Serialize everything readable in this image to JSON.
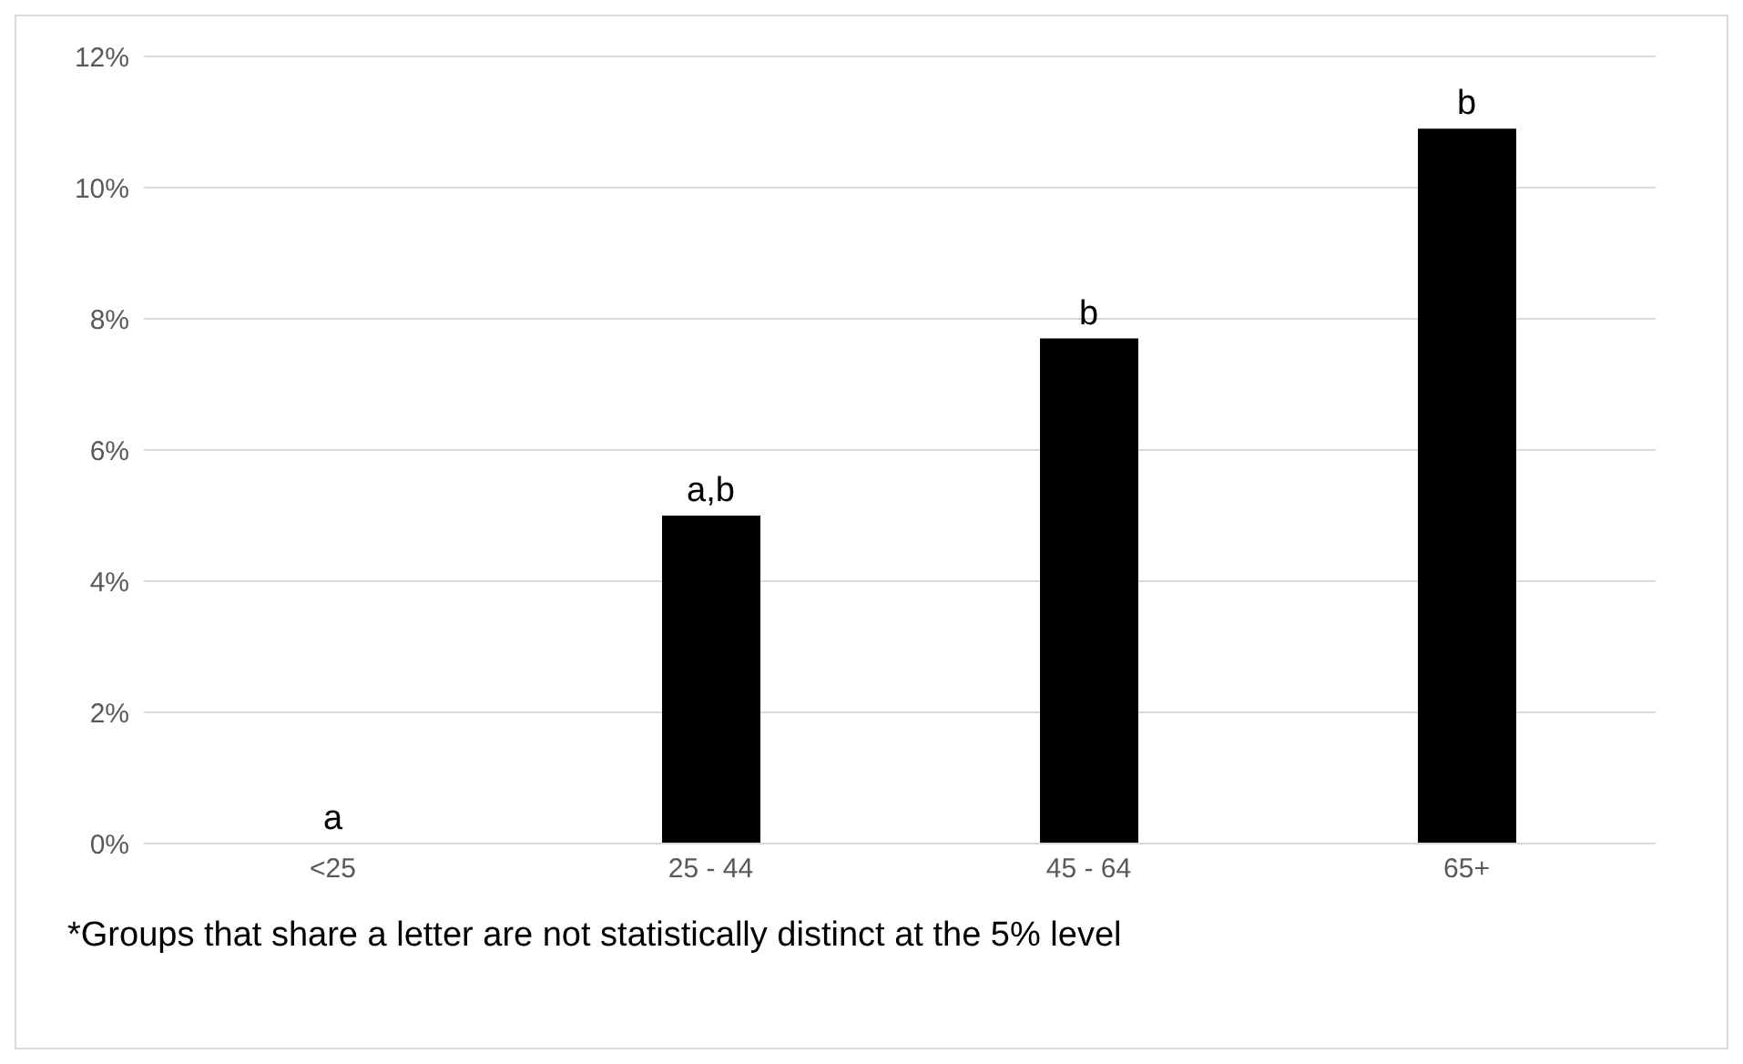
{
  "chart_data": {
    "type": "bar",
    "categories": [
      "<25",
      "25 - 44",
      "45 - 64",
      "65+"
    ],
    "values": [
      0,
      5.0,
      7.7,
      10.9
    ],
    "color": "#000000",
    "ylim": [
      0,
      12
    ],
    "yticks": [
      {
        "value": 0,
        "label": "0%"
      },
      {
        "value": 2,
        "label": "2%"
      },
      {
        "value": 4,
        "label": "4%"
      },
      {
        "value": 6,
        "label": "6%"
      },
      {
        "value": 8,
        "label": "8%"
      },
      {
        "value": 10,
        "label": "10%"
      },
      {
        "value": 12,
        "label": "12%"
      }
    ],
    "grid": "y",
    "annotations": [
      {
        "text": "a",
        "x": "<25",
        "y": 0
      },
      {
        "text": "a,b",
        "x": "25 - 44",
        "y": 5.0
      },
      {
        "text": "b",
        "x": "45 - 64",
        "y": 7.7
      },
      {
        "text": "b",
        "x": "65+",
        "y": 10.9
      },
      "*Groups that share a letter are not statistically distinct at the 5% level"
    ]
  }
}
